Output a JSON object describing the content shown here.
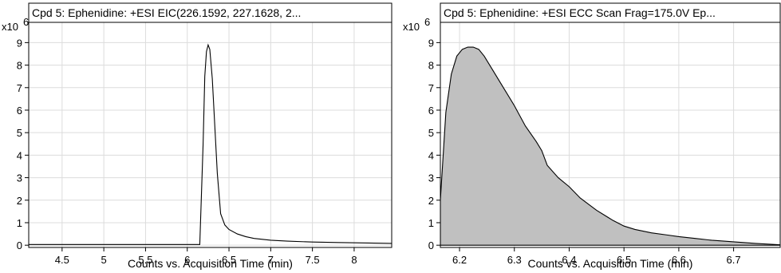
{
  "chart_data": [
    {
      "type": "line",
      "title": "Cpd 5: Ephenidine: +ESI EIC(226.1592, 227.1628, 2...",
      "xlabel": "Counts vs. Acquisition Time (min)",
      "ylabel": "",
      "y_multiplier": "x10",
      "y_exponent": "6",
      "xlim": [
        4.1,
        8.45
      ],
      "ylim": [
        -0.1,
        9.9
      ],
      "xticks": [
        4.5,
        5,
        5.5,
        6,
        6.5,
        7,
        7.5,
        8
      ],
      "xtick_labels": [
        "4.5",
        "5",
        "5.5",
        "6",
        "6.5",
        "7",
        "7.5",
        "8"
      ],
      "yticks": [
        0,
        1,
        2,
        3,
        4,
        5,
        6,
        7,
        8,
        9
      ],
      "ytick_labels": [
        "0",
        "1",
        "2",
        "3",
        "4",
        "5",
        "6",
        "7",
        "8",
        "9"
      ],
      "grid": true,
      "filled": false,
      "series": [
        {
          "x": [
            4.1,
            6.15,
            6.19,
            6.21,
            6.23,
            6.25,
            6.27,
            6.3,
            6.33,
            6.36,
            6.4,
            6.45,
            6.5,
            6.6,
            6.7,
            6.8,
            7.0,
            7.2,
            7.5,
            7.8,
            8.1,
            8.45
          ],
          "y": [
            0.03,
            0.03,
            4.5,
            7.5,
            8.6,
            8.9,
            8.7,
            7.4,
            5.3,
            3.2,
            1.4,
            0.9,
            0.7,
            0.5,
            0.38,
            0.3,
            0.22,
            0.18,
            0.14,
            0.12,
            0.1,
            0.08
          ]
        }
      ]
    },
    {
      "type": "area",
      "title": "Cpd 5: Ephenidine: +ESI ECC Scan Frag=175.0V Ep...",
      "xlabel": "Counts vs. Acquisition Time (min)",
      "ylabel": "",
      "y_multiplier": "x10",
      "y_exponent": "6",
      "xlim": [
        6.165,
        6.785
      ],
      "ylim": [
        -0.1,
        9.9
      ],
      "xticks": [
        6.2,
        6.3,
        6.4,
        6.5,
        6.6,
        6.7
      ],
      "xtick_labels": [
        "6.2",
        "6.3",
        "6.4",
        "6.5",
        "6.6",
        "6.7"
      ],
      "yticks": [
        0,
        1,
        2,
        3,
        4,
        5,
        6,
        7,
        8,
        9
      ],
      "ytick_labels": [
        "0",
        "1",
        "2",
        "3",
        "4",
        "5",
        "6",
        "7",
        "8",
        "9"
      ],
      "grid": true,
      "filled": true,
      "fill_color": "#c0c0c0",
      "series": [
        {
          "x": [
            6.165,
            6.175,
            6.185,
            6.195,
            6.205,
            6.215,
            6.225,
            6.235,
            6.245,
            6.26,
            6.28,
            6.3,
            6.32,
            6.34,
            6.35,
            6.36,
            6.38,
            6.4,
            6.42,
            6.45,
            6.48,
            6.5,
            6.52,
            6.55,
            6.58,
            6.6,
            6.63,
            6.66,
            6.7,
            6.74,
            6.785
          ],
          "y": [
            2.0,
            5.9,
            7.6,
            8.4,
            8.7,
            8.8,
            8.8,
            8.7,
            8.4,
            7.8,
            7.0,
            6.2,
            5.3,
            4.6,
            4.2,
            3.55,
            3.0,
            2.6,
            2.1,
            1.55,
            1.1,
            0.85,
            0.7,
            0.55,
            0.45,
            0.38,
            0.3,
            0.22,
            0.15,
            0.08,
            0.02
          ]
        }
      ]
    }
  ]
}
